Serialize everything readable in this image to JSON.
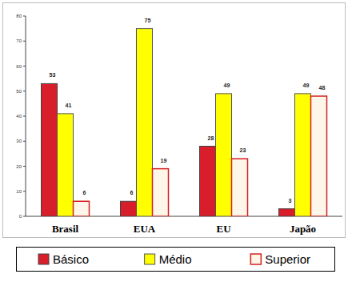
{
  "chart_data": {
    "type": "bar",
    "categories": [
      "Brasil",
      "EUA",
      "EU",
      "Japão"
    ],
    "series": [
      {
        "name": "Básico",
        "color": "#d81e2a",
        "values": [
          53,
          6,
          28,
          3
        ]
      },
      {
        "name": "Médio",
        "color": "#ffff00",
        "values": [
          41,
          75,
          49,
          49
        ]
      },
      {
        "name": "Superior",
        "color": "#fff6ea",
        "values": [
          6,
          19,
          23,
          48
        ]
      }
    ],
    "ylim": [
      0,
      80
    ],
    "yticks": [
      0,
      10,
      20,
      30,
      40,
      50,
      60,
      70,
      80
    ],
    "grid": false,
    "legend": "bottom",
    "data_labels": true
  }
}
